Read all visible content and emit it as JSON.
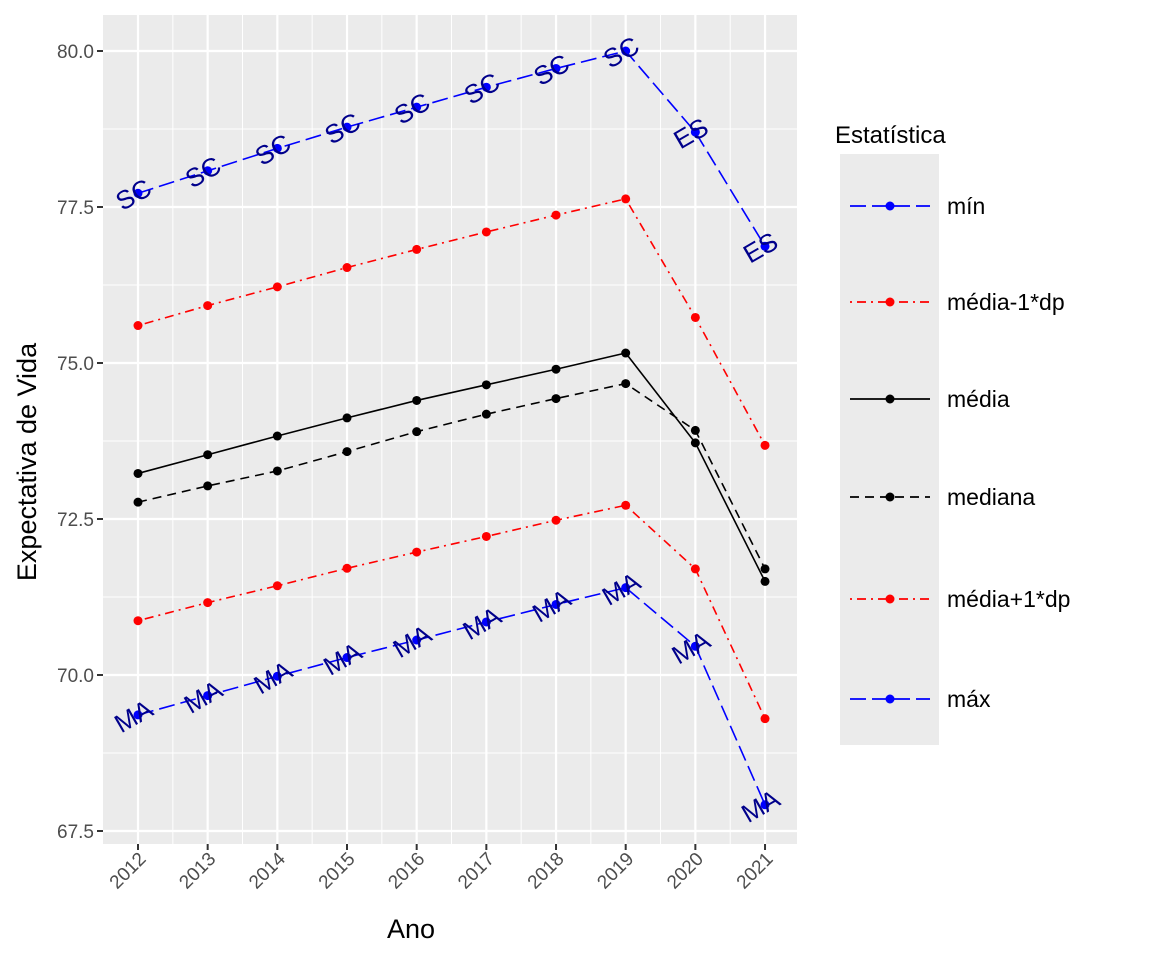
{
  "chart_data": {
    "type": "line",
    "xlabel": "Ano",
    "ylabel": "Expectativa de Vida",
    "x": [
      "2012",
      "2013",
      "2014",
      "2015",
      "2016",
      "2017",
      "2018",
      "2019",
      "2020",
      "2021"
    ],
    "ylim": [
      67.4,
      80.6
    ],
    "yticks": [
      "67.5",
      "70.0",
      "72.5",
      "75.0",
      "77.5",
      "80.0"
    ],
    "grid": true,
    "legend": {
      "title": "Estatística",
      "position": "right"
    },
    "series": [
      {
        "name": "mín",
        "color": "#0000ff",
        "dash": "longdash",
        "values": [
          77.72,
          78.08,
          78.44,
          78.78,
          79.1,
          79.42,
          79.72,
          80.0,
          78.7,
          76.87
        ],
        "labels": [
          "SC",
          "SC",
          "SC",
          "SC",
          "SC",
          "SC",
          "SC",
          "SC",
          "ES",
          "ES"
        ]
      },
      {
        "name": "média-1*dp",
        "color": "#ff0000",
        "dash": "dotdash",
        "values": [
          75.6,
          75.92,
          76.22,
          76.53,
          76.82,
          77.1,
          77.37,
          77.63,
          75.73,
          73.68
        ]
      },
      {
        "name": "média",
        "color": "#000000",
        "dash": "solid",
        "values": [
          73.23,
          73.53,
          73.83,
          74.12,
          74.4,
          74.65,
          74.9,
          75.16,
          73.72,
          71.5
        ]
      },
      {
        "name": "mediana",
        "color": "#000000",
        "dash": "dashed",
        "values": [
          72.77,
          73.03,
          73.27,
          73.58,
          73.9,
          74.18,
          74.43,
          74.67,
          73.92,
          71.7
        ]
      },
      {
        "name": "média+1*dp",
        "color": "#ff0000",
        "dash": "dotdash",
        "values": [
          70.87,
          71.16,
          71.43,
          71.71,
          71.97,
          72.22,
          72.48,
          72.72,
          71.7,
          69.3
        ]
      },
      {
        "name": "máx",
        "color": "#0000ff",
        "dash": "longdash",
        "values": [
          69.36,
          69.67,
          69.98,
          70.28,
          70.56,
          70.85,
          71.13,
          71.4,
          70.46,
          67.92
        ],
        "labels": [
          "MA",
          "MA",
          "MA",
          "MA",
          "MA",
          "MA",
          "MA",
          "MA",
          "MA",
          "MA"
        ]
      }
    ]
  }
}
